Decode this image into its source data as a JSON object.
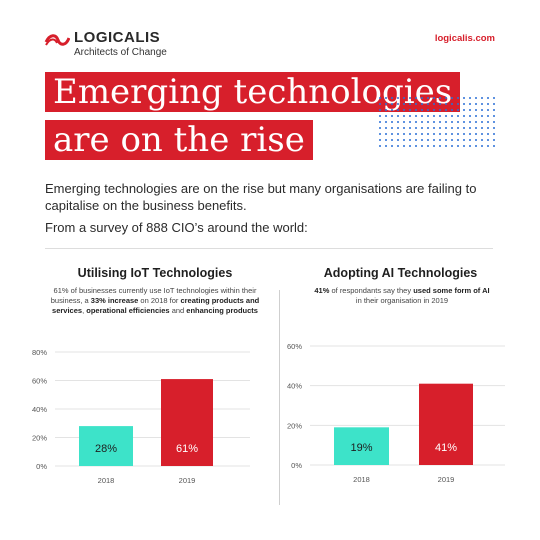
{
  "brand": {
    "name": "LOGICALIS",
    "tagline": "Architects of Change",
    "url": "logicalis.com",
    "accent": "#d71f2b",
    "bar_2018": "#3de3c9",
    "bar_2019": "#d71f2b"
  },
  "headline": {
    "line1": "Emerging technologies",
    "line2": "are on the rise"
  },
  "intro": "Emerging technologies are on the rise but many organisations are failing to capitalise on the business benefits.",
  "survey": "From a survey of 888 CIO’s around the world:",
  "iot": {
    "title": "Utilising IoT Technologies",
    "desc": {
      "p1": "61% of businesses currently use IoT technologies within their business, a ",
      "b1": "33% increase",
      "p2": " on 2018 for ",
      "b2": "creating products and services",
      "p3": ", ",
      "b3": "operational efficiencies",
      "p4": " and ",
      "b4": "enhancing products"
    }
  },
  "ai": {
    "title": "Adopting AI Technologies",
    "desc": {
      "b1": "41%",
      "p1": " of respondants say they ",
      "b2": "used some form of AI",
      "p2": " in their organisation in 2019"
    }
  },
  "chart_data": [
    {
      "type": "bar",
      "categories": [
        "2018",
        "2019"
      ],
      "values": [
        28,
        61
      ],
      "labels": [
        "28%",
        "61%"
      ],
      "yticks": [
        "0%",
        "20%",
        "40%",
        "60%",
        "80%"
      ],
      "ylim": [
        0,
        80
      ],
      "colors": [
        "#3de3c9",
        "#d71f2b"
      ]
    },
    {
      "type": "bar",
      "categories": [
        "2018",
        "2019"
      ],
      "values": [
        19,
        41
      ],
      "labels": [
        "19%",
        "41%"
      ],
      "yticks": [
        "0%",
        "20%",
        "40%",
        "60%"
      ],
      "ylim": [
        0,
        60
      ],
      "colors": [
        "#3de3c9",
        "#d71f2b"
      ]
    }
  ]
}
